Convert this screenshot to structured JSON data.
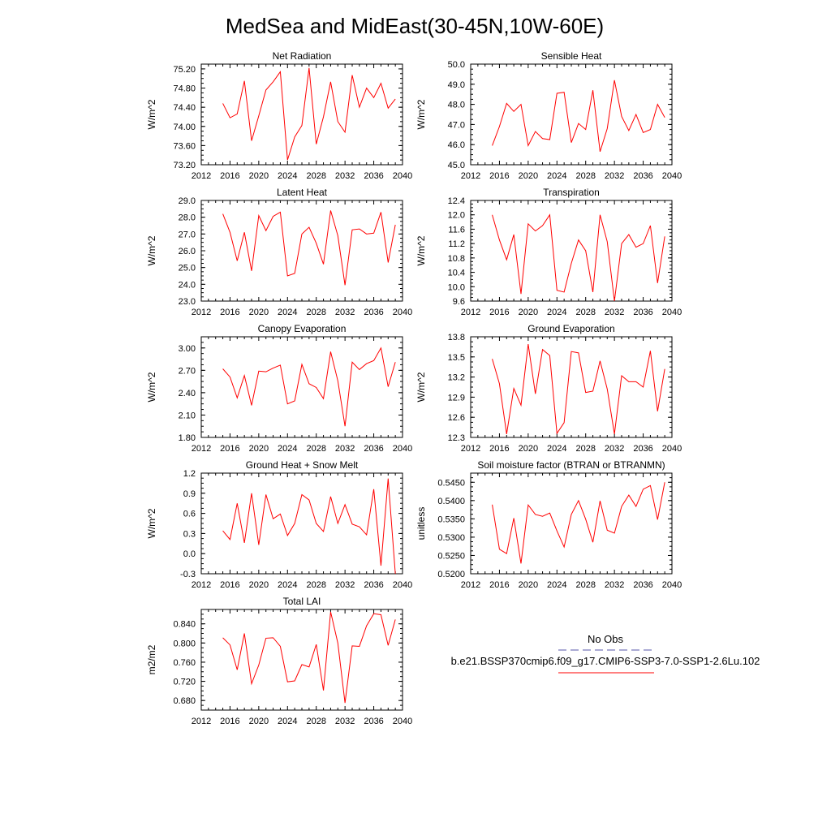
{
  "figure": {
    "title": "MedSea and MidEast(30-45N,10W-60E)",
    "legend": {
      "obs_label": "No Obs",
      "case_label": "b.e21.BSSP370cmip6.f09_g17.CMIP6-SSP3-7.0-SSP1-2.6Lu.102",
      "obs_color": "#5555aa",
      "case_color": "#ff0000"
    }
  },
  "chart_data": [
    {
      "type": "line",
      "title": "Net Radiation",
      "ylabel": "W/m^2",
      "xlim": [
        2012,
        2040
      ],
      "xticks": [
        "2012",
        "2016",
        "2020",
        "2024",
        "2028",
        "2032",
        "2036",
        "2040"
      ],
      "ylim": [
        73.2,
        75.3
      ],
      "yticks": [
        "73.20",
        "73.60",
        "74.00",
        "74.40",
        "74.80",
        "75.20"
      ],
      "series": [
        {
          "color": "#ff0000",
          "x": [
            2015,
            2016,
            2017,
            2018,
            2019,
            2020,
            2021,
            2022,
            2023,
            2024,
            2025,
            2026,
            2027,
            2028,
            2029,
            2030,
            2031,
            2032,
            2033,
            2034,
            2035,
            2036,
            2037,
            2038,
            2039
          ],
          "values": [
            74.48,
            74.18,
            74.26,
            74.95,
            73.7,
            74.22,
            74.76,
            74.93,
            75.14,
            73.3,
            73.78,
            74.02,
            75.22,
            73.63,
            74.2,
            74.93,
            74.1,
            73.88,
            75.07,
            74.4,
            74.8,
            74.6,
            74.9,
            74.38,
            74.57
          ]
        }
      ]
    },
    {
      "type": "line",
      "title": "Sensible Heat",
      "ylabel": "W/m^2",
      "xlim": [
        2012,
        2040
      ],
      "xticks": [
        "2012",
        "2016",
        "2020",
        "2024",
        "2028",
        "2032",
        "2036",
        "2040"
      ],
      "ylim": [
        45.0,
        50.0
      ],
      "yticks": [
        "45.0",
        "46.0",
        "47.0",
        "48.0",
        "49.0",
        "50.0"
      ],
      "series": [
        {
          "color": "#ff0000",
          "x": [
            2015,
            2016,
            2017,
            2018,
            2019,
            2020,
            2021,
            2022,
            2023,
            2024,
            2025,
            2026,
            2027,
            2028,
            2029,
            2030,
            2031,
            2032,
            2033,
            2034,
            2035,
            2036,
            2037,
            2038,
            2039
          ],
          "values": [
            45.95,
            46.9,
            48.05,
            47.65,
            48.0,
            45.95,
            46.65,
            46.3,
            46.25,
            48.55,
            48.6,
            46.1,
            47.05,
            46.75,
            48.7,
            45.65,
            46.8,
            49.2,
            47.4,
            46.7,
            47.5,
            46.6,
            46.75,
            48.0,
            47.35
          ]
        }
      ]
    },
    {
      "type": "line",
      "title": "Latent Heat",
      "ylabel": "W/m^2",
      "xlim": [
        2012,
        2040
      ],
      "xticks": [
        "2012",
        "2016",
        "2020",
        "2024",
        "2028",
        "2032",
        "2036",
        "2040"
      ],
      "ylim": [
        23.0,
        29.0
      ],
      "yticks": [
        "23.0",
        "24.0",
        "25.0",
        "26.0",
        "27.0",
        "28.0",
        "29.0"
      ],
      "series": [
        {
          "color": "#ff0000",
          "x": [
            2015,
            2016,
            2017,
            2018,
            2019,
            2020,
            2021,
            2022,
            2023,
            2024,
            2025,
            2026,
            2027,
            2028,
            2029,
            2030,
            2031,
            2032,
            2033,
            2034,
            2035,
            2036,
            2037,
            2038,
            2039
          ],
          "values": [
            28.2,
            27.1,
            25.4,
            27.1,
            24.8,
            28.1,
            27.2,
            28.05,
            28.3,
            24.5,
            24.65,
            27.0,
            27.4,
            26.45,
            25.2,
            28.4,
            26.9,
            23.95,
            27.25,
            27.3,
            27.0,
            27.05,
            28.3,
            25.3,
            27.55
          ]
        }
      ]
    },
    {
      "type": "line",
      "title": "Transpiration",
      "ylabel": "W/m^2",
      "xlim": [
        2012,
        2040
      ],
      "xticks": [
        "2012",
        "2016",
        "2020",
        "2024",
        "2028",
        "2032",
        "2036",
        "2040"
      ],
      "ylim": [
        9.6,
        12.4
      ],
      "yticks": [
        "9.6",
        "10.0",
        "10.4",
        "10.8",
        "11.2",
        "11.6",
        "12.0",
        "12.4"
      ],
      "series": [
        {
          "color": "#ff0000",
          "x": [
            2015,
            2016,
            2017,
            2018,
            2019,
            2020,
            2021,
            2022,
            2023,
            2024,
            2025,
            2026,
            2027,
            2028,
            2029,
            2030,
            2031,
            2032,
            2033,
            2034,
            2035,
            2036,
            2037,
            2038,
            2039
          ],
          "values": [
            12.0,
            11.3,
            10.75,
            11.45,
            9.8,
            11.75,
            11.55,
            11.7,
            12.0,
            9.9,
            9.85,
            10.65,
            11.3,
            11.0,
            9.85,
            12.0,
            11.25,
            9.6,
            11.2,
            11.45,
            11.1,
            11.2,
            11.7,
            10.1,
            11.4
          ]
        }
      ]
    },
    {
      "type": "line",
      "title": "Canopy Evaporation",
      "ylabel": "W/m^2",
      "xlim": [
        2012,
        2040
      ],
      "xticks": [
        "2012",
        "2016",
        "2020",
        "2024",
        "2028",
        "2032",
        "2036",
        "2040"
      ],
      "ylim": [
        1.8,
        3.15
      ],
      "yticks": [
        "1.80",
        "2.10",
        "2.40",
        "2.70",
        "3.00"
      ],
      "series": [
        {
          "color": "#ff0000",
          "x": [
            2015,
            2016,
            2017,
            2018,
            2019,
            2020,
            2021,
            2022,
            2023,
            2024,
            2025,
            2026,
            2027,
            2028,
            2029,
            2030,
            2031,
            2032,
            2033,
            2034,
            2035,
            2036,
            2037,
            2038,
            2039
          ],
          "values": [
            2.72,
            2.61,
            2.33,
            2.63,
            2.23,
            2.69,
            2.68,
            2.73,
            2.77,
            2.25,
            2.29,
            2.78,
            2.52,
            2.47,
            2.32,
            2.95,
            2.56,
            1.95,
            2.81,
            2.71,
            2.79,
            2.83,
            3.0,
            2.48,
            2.81
          ]
        }
      ]
    },
    {
      "type": "line",
      "title": "Ground Evaporation",
      "ylabel": "W/m^2",
      "xlim": [
        2012,
        2040
      ],
      "xticks": [
        "2012",
        "2016",
        "2020",
        "2024",
        "2028",
        "2032",
        "2036",
        "2040"
      ],
      "ylim": [
        12.3,
        13.8
      ],
      "yticks": [
        "12.3",
        "12.6",
        "12.9",
        "13.2",
        "13.5",
        "13.8"
      ],
      "series": [
        {
          "color": "#ff0000",
          "x": [
            2015,
            2016,
            2017,
            2018,
            2019,
            2020,
            2021,
            2022,
            2023,
            2024,
            2025,
            2026,
            2027,
            2028,
            2029,
            2030,
            2031,
            2032,
            2033,
            2034,
            2035,
            2036,
            2037,
            2038,
            2039
          ],
          "values": [
            13.47,
            13.1,
            12.35,
            13.03,
            12.78,
            13.69,
            12.95,
            13.61,
            13.52,
            12.36,
            12.52,
            13.58,
            13.56,
            12.97,
            12.99,
            13.44,
            13.02,
            12.35,
            13.22,
            13.13,
            13.13,
            13.05,
            13.59,
            12.69,
            13.32
          ]
        }
      ]
    },
    {
      "type": "line",
      "title": "Ground Heat + Snow Melt",
      "ylabel": "W/m^2",
      "xlim": [
        2012,
        2040
      ],
      "xticks": [
        "2012",
        "2016",
        "2020",
        "2024",
        "2028",
        "2032",
        "2036",
        "2040"
      ],
      "ylim": [
        -0.3,
        1.2
      ],
      "yticks": [
        "-0.3",
        "0.0",
        "0.3",
        "0.6",
        "0.9",
        "1.2"
      ],
      "series": [
        {
          "color": "#ff0000",
          "x": [
            2015,
            2016,
            2017,
            2018,
            2019,
            2020,
            2021,
            2022,
            2023,
            2024,
            2025,
            2026,
            2027,
            2028,
            2029,
            2030,
            2031,
            2032,
            2033,
            2034,
            2035,
            2036,
            2037,
            2038,
            2039
          ],
          "values": [
            0.34,
            0.21,
            0.75,
            0.16,
            0.9,
            0.13,
            0.88,
            0.52,
            0.59,
            0.27,
            0.45,
            0.88,
            0.8,
            0.45,
            0.33,
            0.85,
            0.45,
            0.73,
            0.44,
            0.4,
            0.28,
            0.96,
            -0.18,
            1.12,
            -0.3
          ]
        }
      ]
    },
    {
      "type": "line",
      "title": "Soil moisture factor (BTRAN or BTRANMN)",
      "ylabel": "unitless",
      "xlim": [
        2012,
        2040
      ],
      "xticks": [
        "2012",
        "2016",
        "2020",
        "2024",
        "2028",
        "2032",
        "2036",
        "2040"
      ],
      "ylim": [
        0.52,
        0.5475
      ],
      "yticks": [
        "0.5200",
        "0.5250",
        "0.5300",
        "0.5350",
        "0.5400",
        "0.5450"
      ],
      "series": [
        {
          "color": "#ff0000",
          "x": [
            2015,
            2016,
            2017,
            2018,
            2019,
            2020,
            2021,
            2022,
            2023,
            2024,
            2025,
            2026,
            2027,
            2028,
            2029,
            2030,
            2031,
            2032,
            2033,
            2034,
            2035,
            2036,
            2037,
            2038,
            2039
          ],
          "values": [
            0.5389,
            0.5267,
            0.5255,
            0.5352,
            0.5228,
            0.5388,
            0.5362,
            0.5357,
            0.5366,
            0.5317,
            0.5273,
            0.5362,
            0.54,
            0.5349,
            0.5286,
            0.5399,
            0.5319,
            0.5311,
            0.5384,
            0.5415,
            0.5384,
            0.5431,
            0.5441,
            0.5348,
            0.545
          ]
        }
      ]
    },
    {
      "type": "line",
      "title": "Total LAI",
      "ylabel": "m2/m2",
      "xlim": [
        2012,
        2040
      ],
      "xticks": [
        "2012",
        "2016",
        "2020",
        "2024",
        "2028",
        "2032",
        "2036",
        "2040"
      ],
      "ylim": [
        0.66,
        0.87
      ],
      "yticks": [
        "0.680",
        "0.720",
        "0.760",
        "0.800",
        "0.840"
      ],
      "series": [
        {
          "color": "#ff0000",
          "x": [
            2015,
            2016,
            2017,
            2018,
            2019,
            2020,
            2021,
            2022,
            2023,
            2024,
            2025,
            2026,
            2027,
            2028,
            2029,
            2030,
            2031,
            2032,
            2033,
            2034,
            2035,
            2036,
            2037,
            2038,
            2039
          ],
          "values": [
            0.811,
            0.796,
            0.744,
            0.82,
            0.715,
            0.754,
            0.81,
            0.811,
            0.793,
            0.719,
            0.721,
            0.755,
            0.75,
            0.797,
            0.701,
            0.865,
            0.8,
            0.675,
            0.794,
            0.793,
            0.836,
            0.861,
            0.859,
            0.795,
            0.849
          ]
        }
      ]
    }
  ]
}
